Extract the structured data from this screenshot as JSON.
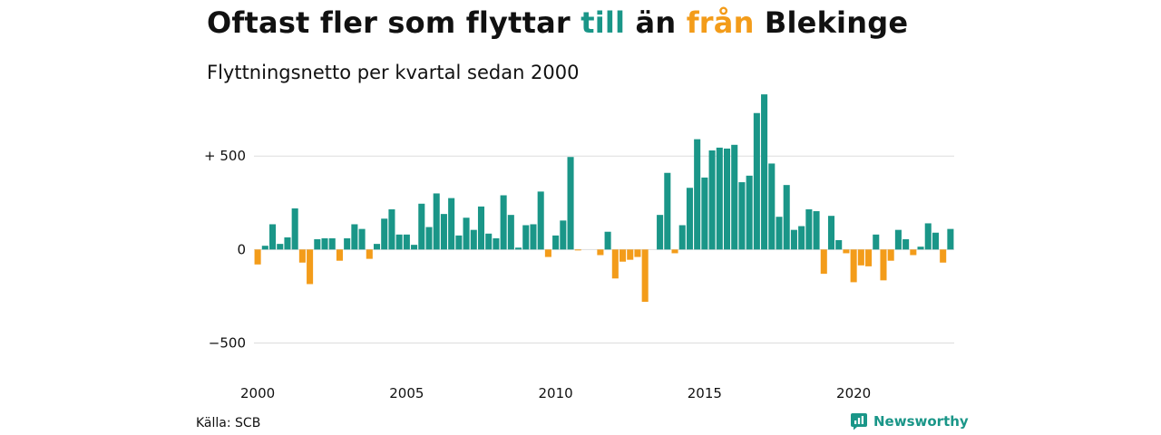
{
  "title": {
    "part1": "Oftast fler som flyttar ",
    "highlight_in": "till",
    "part2": " än ",
    "highlight_out": "från",
    "part3": " Blekinge"
  },
  "subtitle": "Flyttningsnetto per kvartal sedan 2000",
  "source": "Källa: SCB",
  "brand": {
    "name": "Newsworthy",
    "icon": "newsworthy-logo-icon"
  },
  "colors": {
    "positive": "#1a9688",
    "negative": "#f39c1a",
    "brand": "#1a9688",
    "grid": "#dddddd"
  },
  "chart_data": {
    "type": "bar",
    "title": "Flyttningsnetto per kvartal sedan 2000",
    "xlabel": "",
    "ylabel": "",
    "ylim": [
      -750,
      850
    ],
    "grid": true,
    "legend": "none",
    "x_ticks": [
      2000,
      2005,
      2010,
      2015,
      2020
    ],
    "y_ticks": [
      {
        "value": 500,
        "label": "+ 500"
      },
      {
        "value": 0,
        "label": "0"
      },
      {
        "value": -500,
        "label": "−500"
      }
    ],
    "x_start": 2000.0,
    "x_step": 0.25,
    "series": [
      {
        "values": [
          -80,
          20,
          135,
          30,
          65,
          220,
          -70,
          -185,
          55,
          60,
          60,
          -60,
          60,
          135,
          110,
          -50,
          30,
          165,
          215,
          80,
          80,
          25,
          245,
          120,
          300,
          190,
          275,
          75,
          170,
          105,
          230,
          85,
          60,
          290,
          185,
          10,
          130,
          135,
          310,
          -40,
          75,
          155,
          495,
          -5,
          0,
          0,
          -30,
          95,
          -155,
          -65,
          -55,
          -40,
          -280,
          0,
          185,
          410,
          -20,
          130,
          330,
          590,
          385,
          530,
          545,
          540,
          560,
          360,
          395,
          730,
          830,
          460,
          175,
          345,
          105,
          125,
          215,
          205,
          -130,
          180,
          50,
          -20,
          -175,
          -85,
          -90,
          80,
          -165,
          -60,
          105,
          55,
          -30,
          15,
          140,
          90,
          -70,
          110
        ]
      }
    ]
  }
}
